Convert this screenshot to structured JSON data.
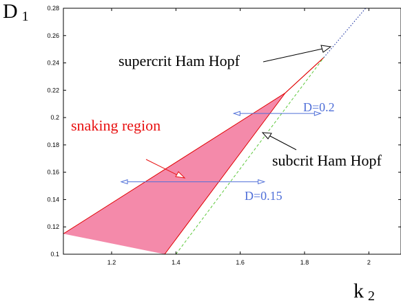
{
  "chart_data": {
    "type": "line",
    "title": "",
    "xlabel": "k",
    "xlabel_sub": "2",
    "ylabel": "D",
    "ylabel_sub": "1",
    "xlim": [
      1.05,
      2.1
    ],
    "ylim": [
      0.1,
      0.28
    ],
    "xticks": [
      1.2,
      1.4,
      1.6,
      1.8,
      2.0
    ],
    "xtick_labels": [
      "1.2",
      "1.4",
      "1.6",
      "1.8",
      "2"
    ],
    "yticks": [
      0.1,
      0.12,
      0.14,
      0.16,
      0.18,
      0.2,
      0.22,
      0.24,
      0.26,
      0.28
    ],
    "ytick_labels": [
      "0.1",
      "0.12",
      "0.14",
      "0.16",
      "0.18",
      "0.2",
      "0.22",
      "0.24",
      "0.26",
      "0.28"
    ],
    "grid": false,
    "snaking_region": {
      "color": "#f48aaa",
      "edge_color": "#e00000",
      "upper_boundary": [
        [
          1.05,
          0.115
        ],
        [
          1.74,
          0.218
        ],
        [
          1.86,
          0.244
        ]
      ],
      "lower_boundary": [
        [
          1.86,
          0.244
        ],
        [
          1.74,
          0.218
        ],
        [
          1.365,
          0.1
        ]
      ]
    },
    "supercritical_hopf": {
      "style": "dotted",
      "color": "#2a3fa8",
      "points": [
        [
          1.86,
          0.244
        ],
        [
          1.99,
          0.28
        ]
      ]
    },
    "subcritical_hopf": {
      "style": "dashed",
      "color": "#5cc83a",
      "points": [
        [
          1.4,
          0.1
        ],
        [
          1.86,
          0.244
        ]
      ]
    },
    "parameter_paths": [
      {
        "label": "D=0.2",
        "y": 0.203,
        "x_start": 1.58,
        "x_end": 1.85,
        "color": "#4f6fd8"
      },
      {
        "label": "D=0.15",
        "y": 0.153,
        "x_start": 1.23,
        "x_end": 1.675,
        "color": "#4f6fd8"
      }
    ],
    "annotations": [
      {
        "text": "supercrit Ham Hopf",
        "color": "#000000"
      },
      {
        "text": "subcrit Ham Hopf",
        "color": "#000000"
      },
      {
        "text": "snaking region",
        "color": "#e81010"
      }
    ]
  }
}
